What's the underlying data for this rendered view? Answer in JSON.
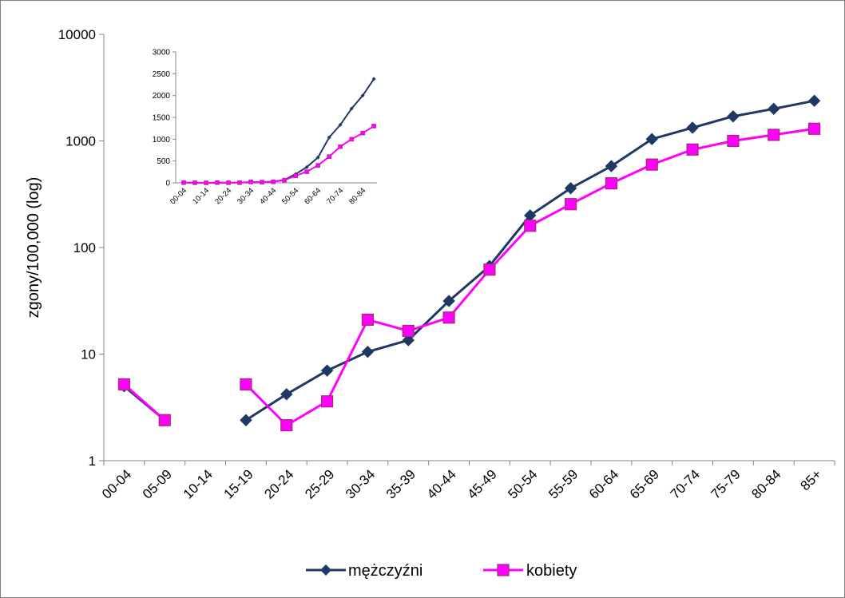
{
  "chart_data": [
    {
      "type": "line",
      "scale": "log",
      "title": "",
      "xlabel": "",
      "ylabel": "zgony/100,000 (log)",
      "ylim": [
        1,
        10000
      ],
      "yticks": [
        "1",
        "10",
        "100",
        "1000",
        "10000"
      ],
      "categories": [
        "00-04",
        "05-09",
        "10-14",
        "15-19",
        "20-24",
        "25-29",
        "30-34",
        "35-39",
        "40-44",
        "45-49",
        "50-54",
        "55-59",
        "60-64",
        "65-69",
        "70-74",
        "75-79",
        "80-84",
        "85+"
      ],
      "grid": false,
      "legend": "bottom",
      "series": [
        {
          "name": "mężczyźni",
          "color": "#1F3864",
          "marker": "diamond",
          "values": [
            5.0,
            2.4,
            null,
            2.4,
            4.2,
            7.0,
            10.5,
            13.5,
            31.5,
            67,
            200,
            360,
            580,
            1040,
            1330,
            1700,
            2000,
            2380
          ]
        },
        {
          "name": "kobiety",
          "color": "#FF00FF",
          "marker": "square",
          "values": [
            5.2,
            2.4,
            null,
            5.2,
            2.15,
            3.6,
            21,
            16.5,
            22,
            62,
            160,
            255,
            400,
            600,
            830,
            1000,
            1140,
            1300
          ]
        }
      ]
    },
    {
      "type": "line",
      "scale": "linear",
      "title": "",
      "ylim": [
        0,
        3000
      ],
      "yticks": [
        "0",
        "500",
        "1000",
        "1500",
        "2000",
        "2500",
        "3000"
      ],
      "xticks": [
        "00-04",
        "10-14",
        "20-24",
        "30-34",
        "40-44",
        "50-54",
        "60-64",
        "70-74",
        "80-84"
      ],
      "categories": [
        "00-04",
        "05-09",
        "10-14",
        "15-19",
        "20-24",
        "25-29",
        "30-34",
        "35-39",
        "40-44",
        "45-49",
        "50-54",
        "55-59",
        "60-64",
        "65-69",
        "70-74",
        "75-79",
        "80-84",
        "85+"
      ],
      "grid": false,
      "series": [
        {
          "color": "#1F3864",
          "values": [
            5,
            2,
            0,
            2,
            4,
            7,
            10,
            13,
            31,
            67,
            200,
            360,
            580,
            1040,
            1330,
            1700,
            2000,
            2380
          ]
        },
        {
          "color": "#FF00FF",
          "values": [
            5,
            2,
            0,
            5,
            2,
            4,
            21,
            16,
            22,
            62,
            160,
            255,
            400,
            600,
            830,
            1000,
            1140,
            1300
          ]
        }
      ]
    }
  ]
}
